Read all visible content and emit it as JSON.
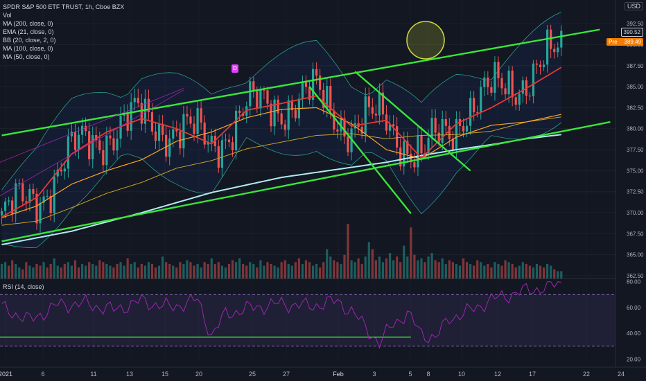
{
  "header": {
    "title": "SPDR S&P 500 ETF TRUST, 1h, Cboe BZX",
    "currency": "USD",
    "indicators": [
      "Vol",
      "MA (200, close, 0)",
      "EMA (21, close, 0)",
      "BB (20, close, 2, 0)",
      "MA (100, close, 0)",
      "MA (50, close, 0)"
    ],
    "rsi_label": "RSI (14, close)",
    "event_marker": "D"
  },
  "price_tags": {
    "last": "390.52",
    "pre_label": "Pre",
    "pre": "389.49"
  },
  "colors": {
    "background": "#131722",
    "up": "#26a69a",
    "down": "#ef5350",
    "trendline": "#39e639",
    "ema21": "#e53935",
    "ma50": "#f9a825",
    "ma100": "#c9a227",
    "ma200": "#b2ebf2",
    "bb": "#2a9d8f",
    "rsi": "#9c27b0"
  },
  "chart_data": [
    {
      "type": "line",
      "title": "SPDR S&P 500 ETF TRUST, 1h, Cboe BZX",
      "x_ticks": [
        "2021",
        "6",
        "11",
        "13",
        "15",
        "20",
        "25",
        "27",
        "Feb",
        "3",
        "5",
        "8",
        "10",
        "12",
        "17",
        "22",
        "24"
      ],
      "y_ticks": [
        "392.50",
        "390.00",
        "387.50",
        "385.00",
        "382.50",
        "380.00",
        "377.50",
        "375.00",
        "372.50",
        "370.00",
        "367.50",
        "365.00",
        "362.50"
      ],
      "ylim": [
        362.5,
        393.5
      ],
      "series": [
        {
          "name": "MA (200, close, 0)",
          "x_index": [
            0,
            10,
            20,
            30,
            40,
            50,
            60,
            70,
            80,
            90,
            100,
            110,
            120,
            130,
            140,
            150,
            160
          ],
          "values": [
            366.2,
            367.0,
            367.8,
            368.9,
            370.0,
            371.2,
            372.4,
            373.3,
            374.2,
            374.8,
            375.4,
            376.0,
            376.8,
            377.5,
            378.1,
            378.8,
            379.3
          ]
        },
        {
          "name": "MA (100, close, 0)",
          "x_index": [
            0,
            10,
            20,
            30,
            40,
            50,
            60,
            70,
            80,
            90,
            100,
            110,
            120,
            130,
            140,
            150,
            160
          ],
          "values": [
            368.5,
            369.0,
            370.6,
            372.3,
            373.6,
            375.3,
            376.2,
            377.6,
            378.4,
            379.2,
            379.4,
            378.8,
            379.2,
            379.3,
            379.7,
            380.8,
            381.4
          ]
        },
        {
          "name": "MA (50, close, 0)",
          "x_index": [
            0,
            10,
            20,
            30,
            40,
            50,
            60,
            70,
            80,
            90,
            100,
            110,
            120,
            130,
            140,
            150,
            160
          ],
          "values": [
            369.4,
            370.8,
            373.4,
            375.0,
            376.3,
            378.5,
            379.6,
            381.3,
            382.3,
            382.5,
            380.6,
            377.5,
            376.4,
            379.0,
            380.4,
            380.8,
            381.7
          ]
        },
        {
          "name": "EMA (21, close, 0)",
          "x_index": [
            0,
            10,
            20,
            30,
            40,
            50,
            60,
            70,
            80,
            90,
            100,
            110,
            120,
            130,
            140,
            150,
            160
          ],
          "values": [
            369.5,
            371.8,
            377.0,
            379.6,
            381.2,
            380.0,
            378.2,
            382.2,
            383.0,
            383.9,
            380.3,
            381.0,
            376.5,
            380.6,
            382.5,
            384.8,
            387.3
          ]
        }
      ],
      "trendlines": [
        {
          "name": "upper channel",
          "from": [
            0,
            379.2
          ],
          "to": [
            171,
            391.8
          ]
        },
        {
          "name": "lower channel",
          "from": [
            0,
            366.6
          ],
          "to": [
            174,
            380.8
          ]
        },
        {
          "name": "falling channel left",
          "from": [
            88,
            385.0
          ],
          "to": [
            117,
            369.9
          ]
        },
        {
          "name": "falling channel right",
          "from": [
            101,
            386.8
          ],
          "to": [
            134,
            375.0
          ]
        }
      ]
    },
    {
      "type": "bar",
      "title": "Vol",
      "x_index_range": [
        0,
        160
      ],
      "values": [
        8,
        9,
        7,
        10,
        8,
        6,
        5,
        9,
        7,
        6,
        8,
        7,
        9,
        6,
        8,
        11,
        7,
        6,
        8,
        9,
        7,
        10,
        6,
        8,
        7,
        9,
        8,
        7,
        10,
        9,
        8,
        7,
        6,
        8,
        9,
        7,
        11,
        8,
        9,
        6,
        8,
        7,
        9,
        8,
        6,
        7,
        12,
        9,
        8,
        7,
        6,
        9,
        8,
        10,
        9,
        7,
        8,
        6,
        9,
        8,
        11,
        8,
        9,
        7,
        6,
        8,
        10,
        9,
        11,
        8,
        7,
        9,
        8,
        6,
        10,
        7,
        9,
        8,
        7,
        6,
        9,
        10,
        8,
        7,
        9,
        11,
        8,
        10,
        9,
        7,
        8,
        6,
        9,
        16,
        12,
        10,
        9,
        8,
        13,
        30,
        10,
        9,
        11,
        8,
        12,
        20,
        16,
        10,
        12,
        9,
        11,
        14,
        10,
        12,
        9,
        18,
        12,
        28,
        13,
        10,
        11,
        9,
        12,
        14,
        10,
        9,
        11,
        8,
        10,
        9,
        8,
        7,
        11,
        9,
        8,
        7,
        10,
        9,
        7,
        8,
        6,
        9,
        8,
        7,
        10,
        9,
        8,
        6,
        7,
        9,
        8,
        7,
        6,
        8,
        7,
        6,
        8,
        7,
        5,
        4,
        4
      ],
      "ylim": [
        0,
        38
      ]
    },
    {
      "type": "line",
      "title": "RSI (14, close)",
      "y_ticks": [
        "80.00",
        "60.00",
        "40.00",
        "20.00"
      ],
      "ylim": [
        20,
        80
      ],
      "x_index": [
        0,
        8,
        16,
        24,
        32,
        40,
        48,
        56,
        60,
        64,
        72,
        80,
        88,
        96,
        100,
        104,
        108,
        112,
        116,
        120,
        124,
        128,
        132,
        140,
        148,
        156,
        160
      ],
      "values": [
        60,
        50,
        62,
        63,
        58,
        65,
        60,
        66,
        38,
        55,
        60,
        63,
        61,
        65,
        57,
        45,
        32,
        48,
        55,
        40,
        36,
        52,
        55,
        66,
        72,
        76,
        79
      ]
    }
  ]
}
